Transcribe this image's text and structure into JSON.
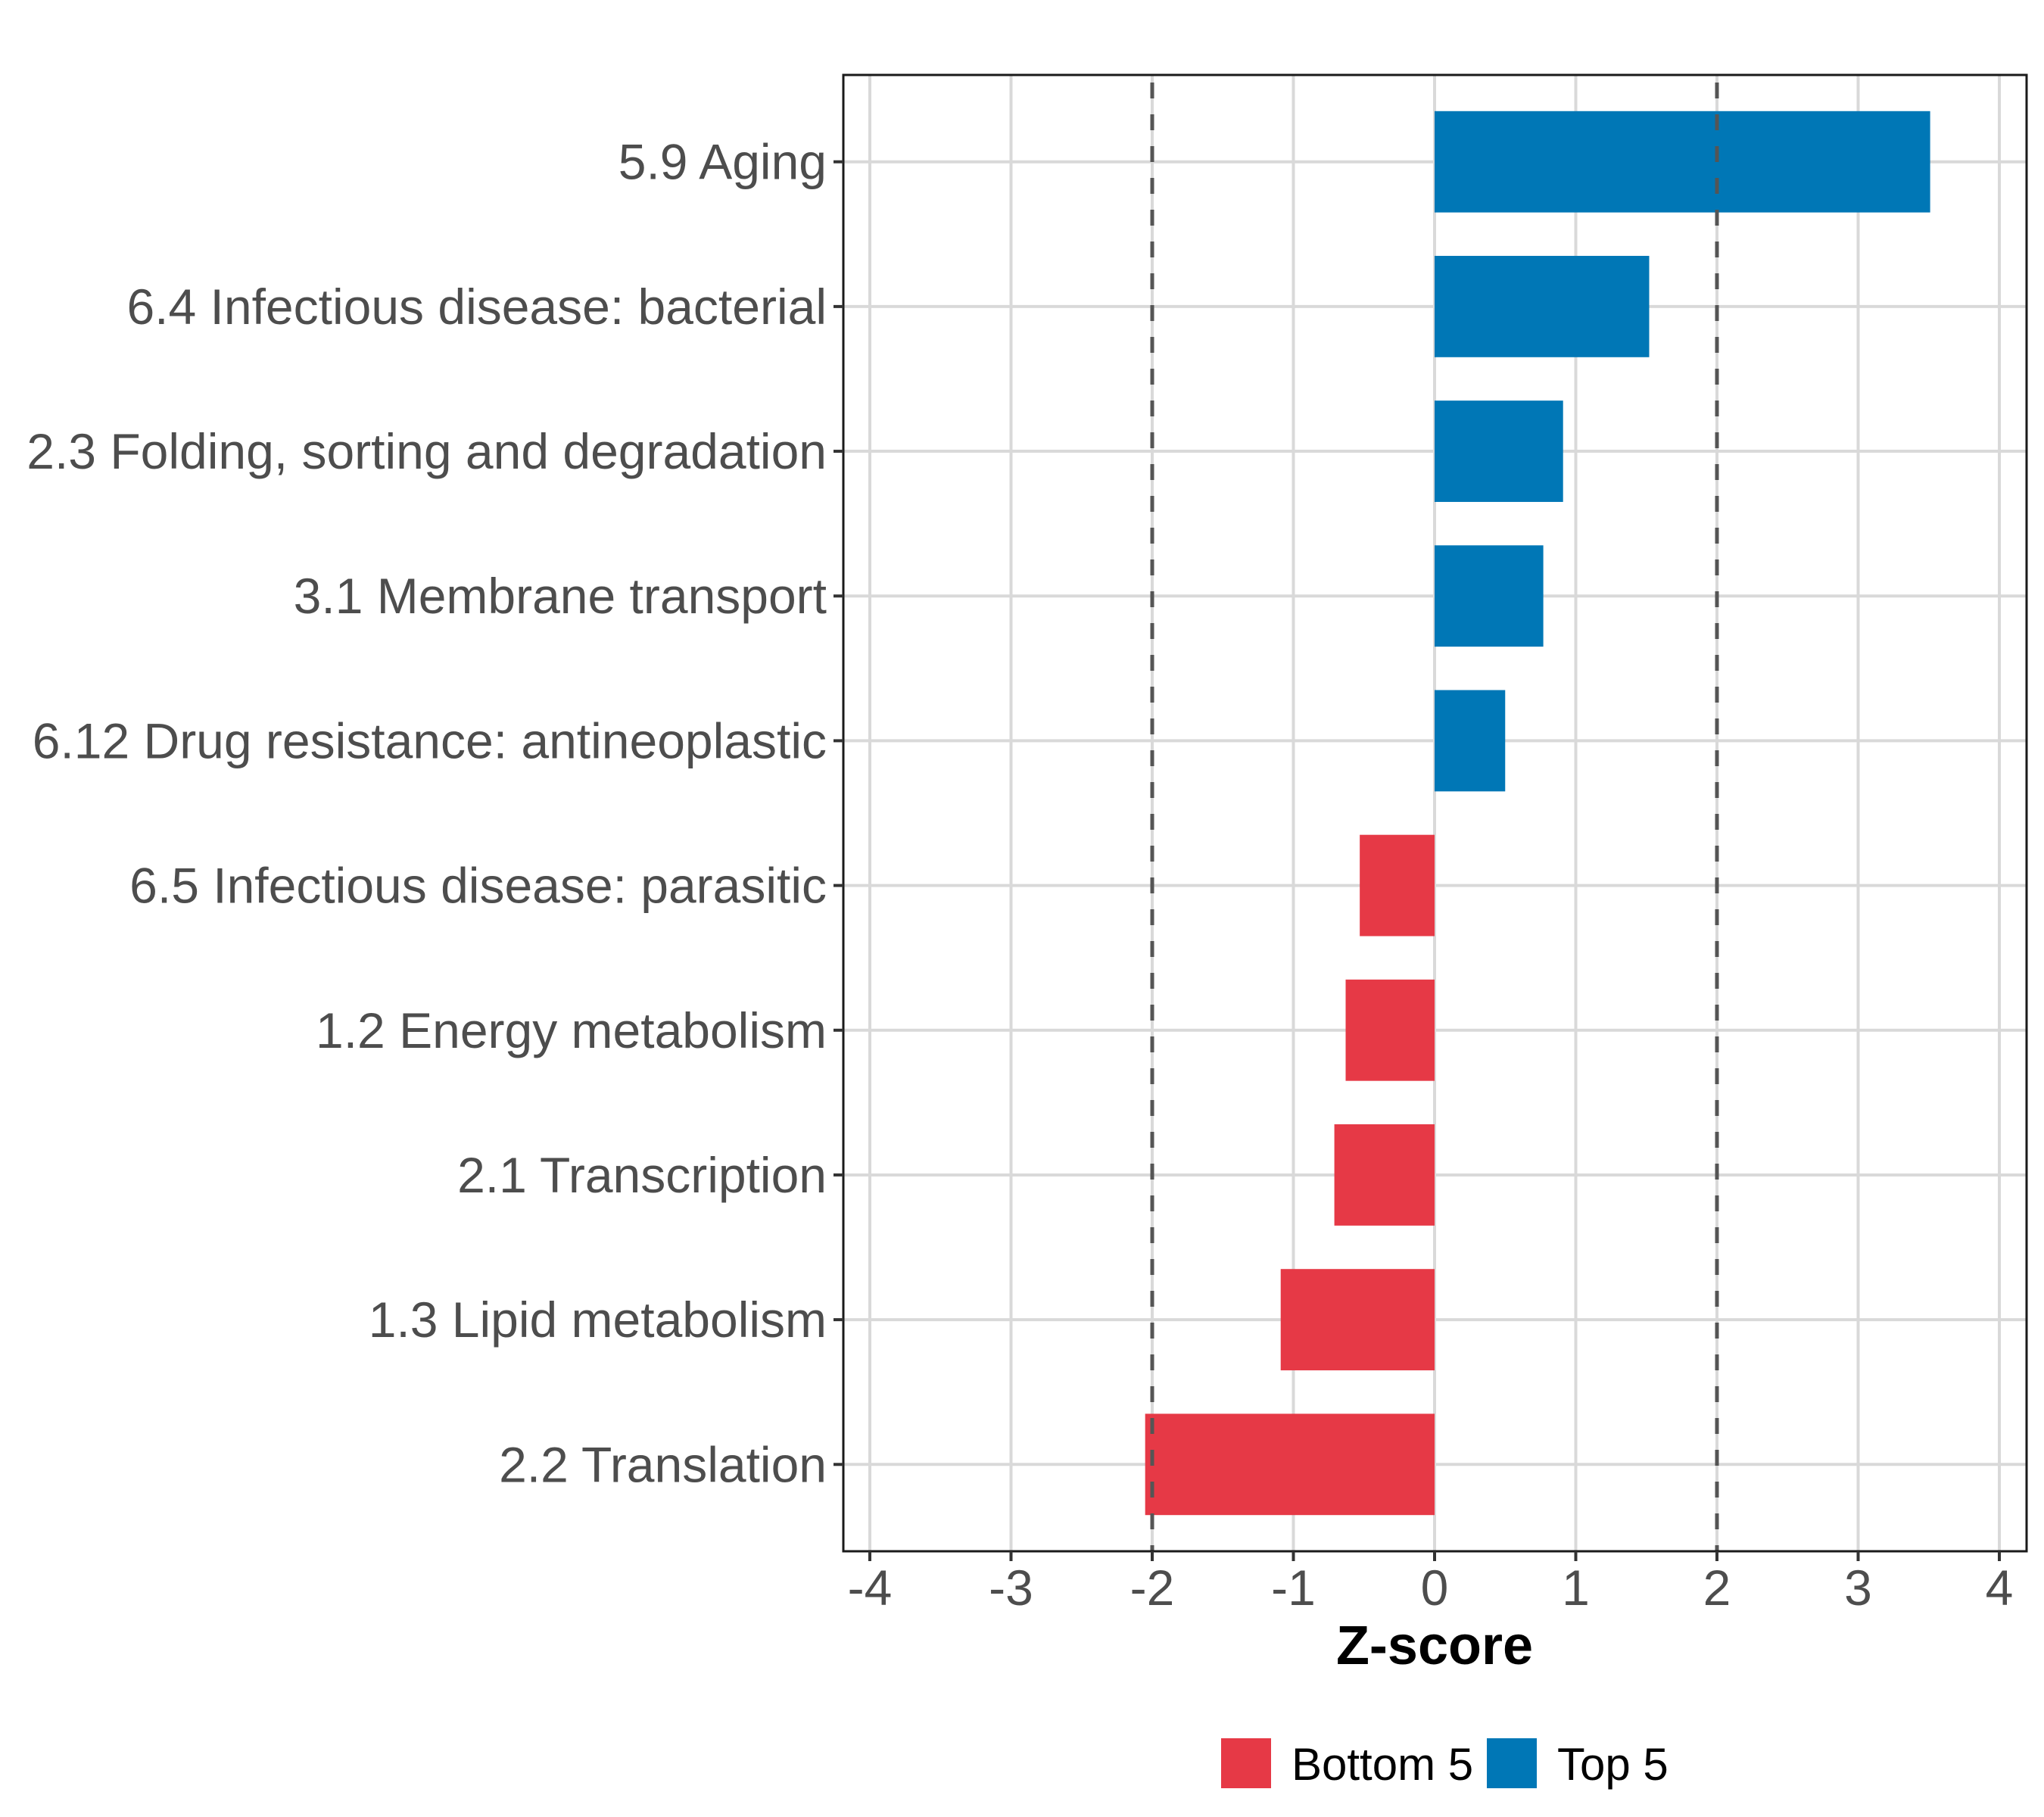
{
  "chart_data": {
    "type": "bar",
    "orientation": "horizontal",
    "title": "",
    "xlabel": "Z-score",
    "ylabel": "",
    "xlim": [
      -4.1,
      4.1
    ],
    "x_ticks": [
      -4,
      -3,
      -2,
      -1,
      0,
      1,
      2,
      3,
      4
    ],
    "x_tick_labels": [
      "-4",
      "-3",
      "-2",
      "-1",
      "0",
      "1",
      "2",
      "3",
      "4"
    ],
    "grid": true,
    "reference_lines": [
      {
        "x": -2,
        "style": "dashed"
      },
      {
        "x": 2,
        "style": "dashed"
      }
    ],
    "categories": [
      "5.9 Aging",
      "6.4 Infectious disease: bacterial",
      "2.3 Folding, sorting and degradation",
      "3.1 Membrane transport",
      "6.12 Drug resistance: antineoplastic",
      "6.5 Infectious disease: parasitic",
      "1.2 Energy metabolism",
      "2.1 Transcription",
      "1.3 Lipid metabolism",
      "2.2 Translation"
    ],
    "values": [
      3.51,
      1.52,
      0.91,
      0.77,
      0.5,
      -0.53,
      -0.63,
      -0.71,
      -1.09,
      -2.05
    ],
    "groups": [
      "Top 5",
      "Top 5",
      "Top 5",
      "Top 5",
      "Top 5",
      "Bottom 5",
      "Bottom 5",
      "Bottom 5",
      "Bottom 5",
      "Bottom 5"
    ],
    "legend": {
      "position": "bottom",
      "entries": [
        {
          "label": "Bottom 5",
          "color": "#E63946"
        },
        {
          "label": "Top 5",
          "color": "#0077B6"
        }
      ]
    },
    "colors": {
      "Top 5": "#0077B6",
      "Bottom 5": "#E63946",
      "grid": "#d9d9d9",
      "reference_line": "#555555",
      "axis_text": "#4d4d4d"
    }
  }
}
